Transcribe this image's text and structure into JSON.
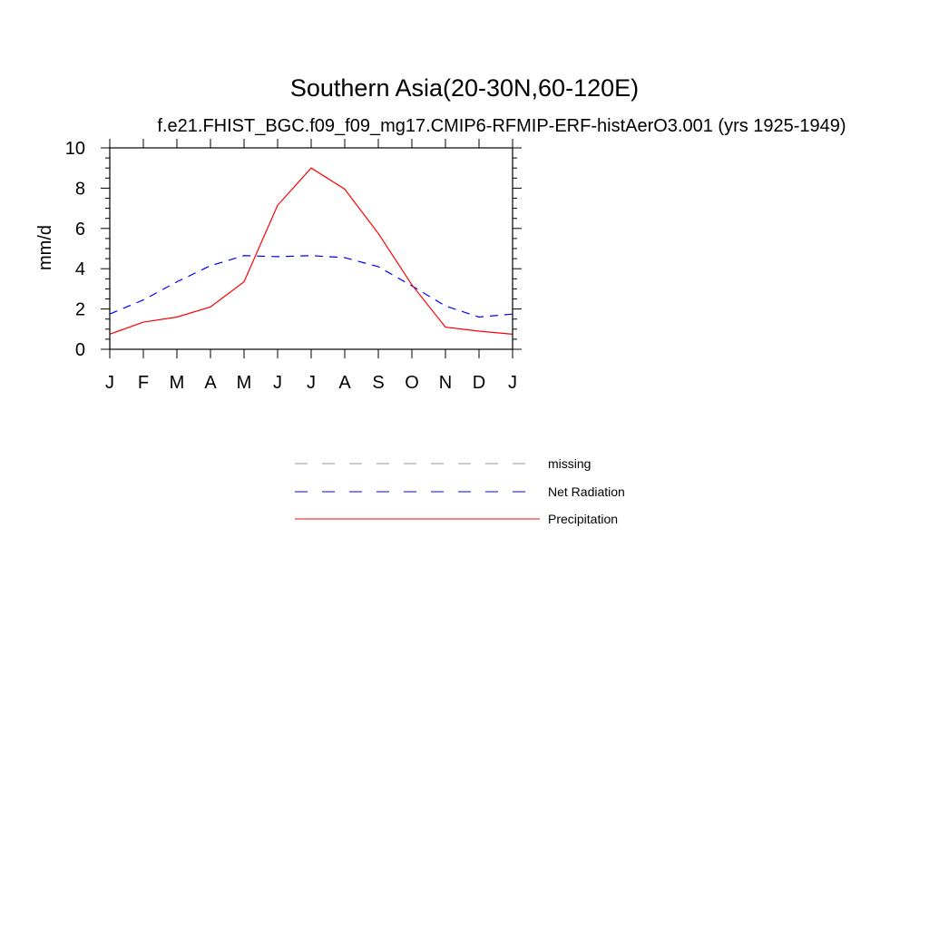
{
  "chart_data": {
    "type": "line",
    "title": "Southern Asia(20-30N,60-120E)",
    "subtitle": "f.e21.FHIST_BGC.f09_f09_mg17.CMIP6-RFMIP-ERF-histAerO3.001 (yrs 1925-1949)",
    "xlabel": "",
    "ylabel": "mm/d",
    "categories": [
      "J",
      "F",
      "M",
      "A",
      "M",
      "J",
      "J",
      "A",
      "S",
      "O",
      "N",
      "D",
      "J"
    ],
    "ylim": [
      0,
      10
    ],
    "yticks": [
      0,
      2,
      4,
      6,
      8,
      10
    ],
    "ytick_labels": [
      "0",
      "2",
      "4",
      "6",
      "8",
      "10"
    ],
    "series": [
      {
        "name": "Net Radiation",
        "color": "#0000ff",
        "dash": "dashed",
        "values": [
          1.75,
          2.45,
          3.35,
          4.15,
          4.65,
          4.6,
          4.65,
          4.55,
          4.1,
          3.15,
          2.15,
          1.6,
          1.75
        ]
      },
      {
        "name": "Precipitation",
        "color": "#ff0000",
        "dash": "solid",
        "values": [
          0.75,
          1.35,
          1.6,
          2.1,
          3.35,
          7.15,
          9.0,
          7.95,
          5.75,
          3.2,
          1.1,
          0.9,
          0.75
        ]
      }
    ],
    "legend": [
      {
        "label": "missing",
        "color": "#999999",
        "dash": "dashed"
      },
      {
        "label": "Net Radiation",
        "color": "#0000ff",
        "dash": "dashed"
      },
      {
        "label": "Precipitation",
        "color": "#ff0000",
        "dash": "solid"
      }
    ]
  }
}
